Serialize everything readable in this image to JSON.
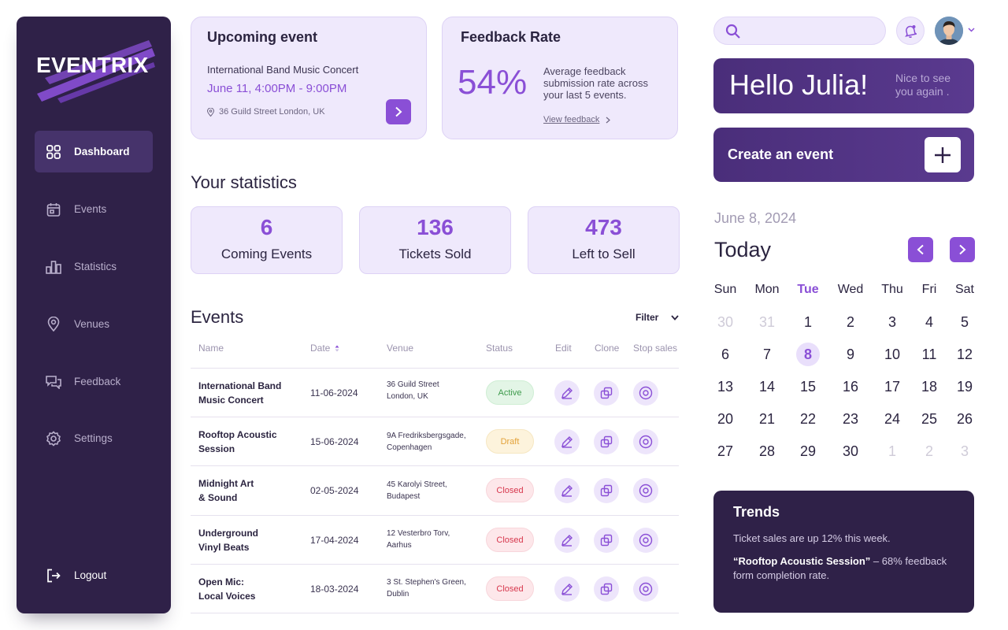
{
  "brand": "EVENTRIX",
  "colors": {
    "accent": "#8a4fd6",
    "sidebar": "#2f2148",
    "card": "#efe9fc",
    "active_status": "#3f9b4d",
    "draft_status": "#e3a23a",
    "closed_status": "#d7384e"
  },
  "sidebar": {
    "items": [
      {
        "label": "Dashboard",
        "icon": "grid-icon"
      },
      {
        "label": "Events",
        "icon": "calendar-icon"
      },
      {
        "label": "Statistics",
        "icon": "bar-chart-icon"
      },
      {
        "label": "Venues",
        "icon": "map-pin-icon"
      },
      {
        "label": "Feedback",
        "icon": "chat-icon"
      },
      {
        "label": "Settings",
        "icon": "gear-icon"
      }
    ],
    "logout": "Logout"
  },
  "upcoming": {
    "title": "Upcoming event",
    "name": "International Band Music Concert",
    "datetime": "June 11, 4:00PM - 9:00PM",
    "venue": "36 Guild Street London, UK"
  },
  "feedback": {
    "title": "Feedback Rate",
    "rate": "54%",
    "description": "Average feedback submission rate across your last 5 events.",
    "link": "View feedback"
  },
  "statistics": {
    "title": "Your statistics",
    "cards": [
      {
        "value": "6",
        "label": "Coming Events"
      },
      {
        "value": "136",
        "label": "Tickets Sold"
      },
      {
        "value": "473",
        "label": "Left to Sell"
      }
    ]
  },
  "events": {
    "title": "Events",
    "filter": "Filter",
    "columns": {
      "name": "Name",
      "date": "Date",
      "venue": "Venue",
      "status": "Status",
      "edit": "Edit",
      "clone": "Clone",
      "stop": "Stop sales"
    },
    "rows": [
      {
        "name1": "International Band",
        "name2": "Music Concert",
        "date": "11-06-2024",
        "venue1": "36 Guild Street",
        "venue2": "London, UK",
        "status": "Active"
      },
      {
        "name1": "Rooftop Acoustic",
        "name2": "Session",
        "date": "15-06-2024",
        "venue1": "9A Fredriksbergsgade,",
        "venue2": "Copenhagen",
        "status": "Draft"
      },
      {
        "name1": "Midnight Art",
        "name2": "& Sound",
        "date": "02-05-2024",
        "venue1": "45 Karolyi Street,",
        "venue2": "Budapest",
        "status": "Closed"
      },
      {
        "name1": "Underground",
        "name2": "Vinyl Beats",
        "date": "17-04-2024",
        "venue1": "12 Vesterbro Torv,",
        "venue2": "Aarhus",
        "status": "Closed"
      },
      {
        "name1": "Open Mic:",
        "name2": "Local Voices",
        "date": "18-03-2024",
        "venue1": "3 St. Stephen's Green,",
        "venue2": "Dublin",
        "status": "Closed"
      }
    ]
  },
  "search": {
    "placeholder": ""
  },
  "greeting": {
    "main": "Hello Julia!",
    "sub": "Nice to see you again ."
  },
  "create": {
    "label": "Create an event"
  },
  "calendar": {
    "date": "June 8, 2024",
    "today": "Today",
    "weekdays": [
      "Sun",
      "Mon",
      "Tue",
      "Wed",
      "Thu",
      "Fri",
      "Sat"
    ],
    "current_weekday": "Tue",
    "weeks": [
      [
        "30",
        "31",
        "1",
        "2",
        "3",
        "4",
        "5"
      ],
      [
        "6",
        "7",
        "8",
        "9",
        "10",
        "11",
        "12"
      ],
      [
        "13",
        "14",
        "15",
        "16",
        "17",
        "18",
        "19"
      ],
      [
        "20",
        "21",
        "22",
        "23",
        "24",
        "25",
        "26"
      ],
      [
        "27",
        "28",
        "29",
        "30",
        "1",
        "2",
        "3"
      ]
    ],
    "selected": "8"
  },
  "trends": {
    "title": "Trends",
    "line1": "Ticket sales are up 12% this week.",
    "highlight": "“Rooftop Acoustic Session”",
    "line2": " – 68% feedback form completion rate."
  }
}
